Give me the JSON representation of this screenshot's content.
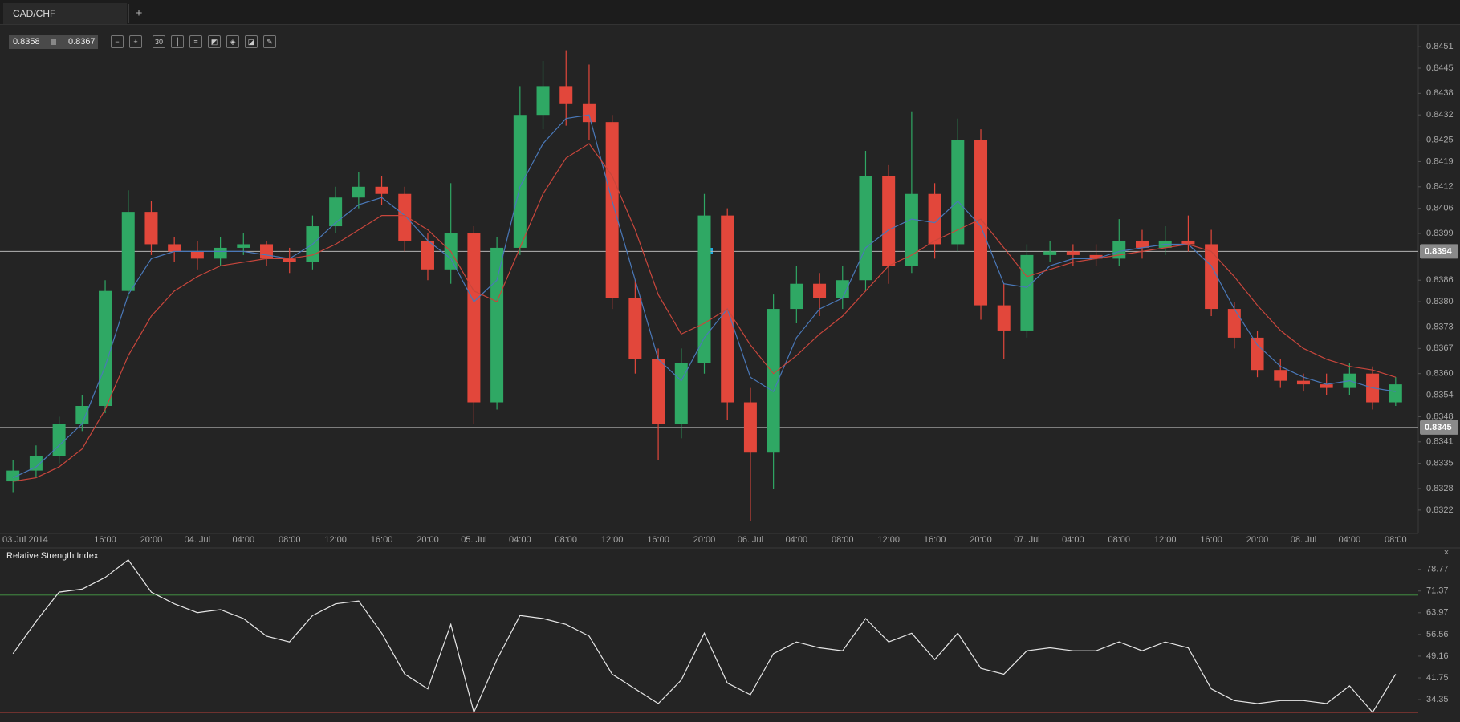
{
  "tab": {
    "title": "CAD/CHF",
    "add": "+"
  },
  "toolbar": {
    "bid": "0.8358",
    "ask": "0.8367",
    "timeframe": "30"
  },
  "chart_data": [
    {
      "type": "candlestick",
      "categories": [
        "03 Jul 2014",
        null,
        null,
        null,
        "16:00",
        null,
        "20:00",
        null,
        "04. Jul",
        null,
        "04:00",
        null,
        "08:00",
        null,
        "12:00",
        null,
        "16:00",
        null,
        "20:00",
        null,
        "05. Jul",
        null,
        "04:00",
        null,
        "08:00",
        null,
        "12:00",
        null,
        "16:00",
        null,
        "20:00",
        null,
        "06. Jul",
        null,
        "04:00",
        null,
        "08:00",
        null,
        "12:00",
        null,
        "16:00",
        null,
        "20:00",
        null,
        "07. Jul",
        null,
        "04:00",
        null,
        "08:00",
        null,
        "12:00",
        null,
        "16:00",
        null,
        "20:00",
        null,
        "08. Jul",
        null,
        "04:00",
        null,
        "08:00"
      ],
      "open": [
        0.833,
        0.8333,
        0.8337,
        0.8346,
        0.8351,
        0.8383,
        0.8405,
        0.8396,
        0.8394,
        0.8392,
        0.8395,
        0.8396,
        0.8392,
        0.8391,
        0.8401,
        0.8409,
        0.8412,
        0.841,
        0.8397,
        0.8389,
        0.8399,
        0.8352,
        0.8395,
        0.8432,
        0.844,
        0.8435,
        0.843,
        0.8381,
        0.8364,
        0.8346,
        0.8363,
        0.8404,
        0.8352,
        0.8338,
        0.8378,
        0.8385,
        0.8381,
        0.8386,
        0.8415,
        0.839,
        0.841,
        0.8396,
        0.8425,
        0.8379,
        0.8372,
        0.8393,
        0.8394,
        0.8393,
        0.8392,
        0.8397,
        0.8395,
        0.8397,
        0.8396,
        0.8378,
        0.837,
        0.8361,
        0.8358,
        0.8357,
        0.8356,
        0.836,
        0.8352
      ],
      "high": [
        0.8336,
        0.834,
        0.8348,
        0.8354,
        0.8386,
        0.8411,
        0.8408,
        0.8398,
        0.8397,
        0.8398,
        0.8399,
        0.8397,
        0.8395,
        0.8404,
        0.8412,
        0.8416,
        0.8415,
        0.8412,
        0.8399,
        0.8413,
        0.8401,
        0.8398,
        0.844,
        0.8447,
        0.845,
        0.8446,
        0.8432,
        0.8386,
        0.8367,
        0.8367,
        0.841,
        0.8406,
        0.8356,
        0.8382,
        0.839,
        0.8388,
        0.839,
        0.8422,
        0.8418,
        0.8433,
        0.8413,
        0.8431,
        0.8428,
        0.8385,
        0.8396,
        0.8397,
        0.8396,
        0.8396,
        0.8403,
        0.84,
        0.8401,
        0.8404,
        0.84,
        0.838,
        0.8372,
        0.8364,
        0.836,
        0.836,
        0.8363,
        0.8362,
        0.8359
      ],
      "low": [
        0.8327,
        0.8331,
        0.8335,
        0.8344,
        0.8349,
        0.8381,
        0.8393,
        0.8391,
        0.8389,
        0.839,
        0.8393,
        0.839,
        0.8388,
        0.8389,
        0.8399,
        0.8406,
        0.8407,
        0.8394,
        0.8386,
        0.8385,
        0.8346,
        0.835,
        0.8393,
        0.8428,
        0.8429,
        0.8425,
        0.8378,
        0.836,
        0.8336,
        0.8342,
        0.836,
        0.8347,
        0.8319,
        0.8328,
        0.8374,
        0.8376,
        0.8378,
        0.8383,
        0.8385,
        0.8388,
        0.8392,
        0.8394,
        0.8375,
        0.8364,
        0.837,
        0.8391,
        0.839,
        0.839,
        0.839,
        0.8392,
        0.8393,
        0.8394,
        0.8376,
        0.8367,
        0.8359,
        0.8356,
        0.8355,
        0.8354,
        0.8354,
        0.835,
        0.8351
      ],
      "close": [
        0.8333,
        0.8337,
        0.8346,
        0.8351,
        0.8383,
        0.8405,
        0.8396,
        0.8394,
        0.8392,
        0.8395,
        0.8396,
        0.8392,
        0.8391,
        0.8401,
        0.8409,
        0.8412,
        0.841,
        0.8397,
        0.8389,
        0.8399,
        0.8352,
        0.8395,
        0.8432,
        0.844,
        0.8435,
        0.843,
        0.8381,
        0.8364,
        0.8346,
        0.8363,
        0.8404,
        0.8352,
        0.8338,
        0.8378,
        0.8385,
        0.8381,
        0.8386,
        0.8415,
        0.839,
        0.841,
        0.8396,
        0.8425,
        0.8379,
        0.8372,
        0.8393,
        0.8394,
        0.8393,
        0.8392,
        0.8397,
        0.8395,
        0.8397,
        0.8396,
        0.8378,
        0.837,
        0.8361,
        0.8358,
        0.8357,
        0.8356,
        0.836,
        0.8352,
        0.8357
      ],
      "up_color": "#2fa864",
      "down_color": "#e2473b",
      "series": [
        {
          "color": "#4a78b8",
          "values": [
            0.8331,
            0.8334,
            0.834,
            0.8346,
            0.8362,
            0.8382,
            0.8392,
            0.8394,
            0.8394,
            0.8394,
            0.8394,
            0.8393,
            0.8392,
            0.8396,
            0.8402,
            0.8407,
            0.8409,
            0.8404,
            0.8397,
            0.8392,
            0.838,
            0.8386,
            0.8412,
            0.8424,
            0.8431,
            0.8432,
            0.8408,
            0.8386,
            0.8364,
            0.8358,
            0.837,
            0.8378,
            0.8359,
            0.8355,
            0.837,
            0.8378,
            0.8381,
            0.8395,
            0.84,
            0.8403,
            0.8402,
            0.8408,
            0.8401,
            0.8385,
            0.8384,
            0.839,
            0.8392,
            0.8392,
            0.8394,
            0.8395,
            0.8396,
            0.8396,
            0.839,
            0.8378,
            0.8368,
            0.8362,
            0.8359,
            0.8357,
            0.8358,
            0.8356,
            0.8355
          ]
        },
        {
          "color": "#c8463c",
          "values": [
            0.833,
            0.8331,
            0.8334,
            0.8339,
            0.835,
            0.8365,
            0.8376,
            0.8383,
            0.8387,
            0.839,
            0.8391,
            0.8392,
            0.8392,
            0.8393,
            0.8396,
            0.84,
            0.8404,
            0.8404,
            0.84,
            0.8394,
            0.8383,
            0.838,
            0.8395,
            0.841,
            0.842,
            0.8424,
            0.8415,
            0.84,
            0.8382,
            0.8371,
            0.8374,
            0.8378,
            0.8368,
            0.836,
            0.8365,
            0.8371,
            0.8376,
            0.8383,
            0.839,
            0.8393,
            0.8397,
            0.84,
            0.8403,
            0.8395,
            0.8387,
            0.8389,
            0.8391,
            0.8392,
            0.8393,
            0.8394,
            0.8395,
            0.8396,
            0.8394,
            0.8387,
            0.8379,
            0.8372,
            0.8367,
            0.8364,
            0.8362,
            0.8361,
            0.8359
          ]
        }
      ],
      "price_lines": [
        0.8394,
        0.8345
      ],
      "ylim": [
        0.83155,
        0.84575
      ],
      "yticks": [
        0.8451,
        0.8445,
        0.8438,
        0.8432,
        0.8425,
        0.8419,
        0.8412,
        0.8406,
        0.8399,
        0.8386,
        {
          "value": 0.838,
          "label": "0.8380"
        },
        0.8373,
        0.8367,
        {
          "value": 0.836,
          "label": "0.8360"
        },
        0.8354,
        0.8348,
        0.8341,
        0.8335,
        0.8328,
        0.8322
      ]
    },
    {
      "type": "line",
      "title": "Relative Strength Index",
      "close": "×",
      "color": "#e6e6e6",
      "values": [
        50,
        61,
        71,
        72,
        76,
        82,
        71,
        67,
        64,
        65,
        62,
        56,
        54,
        63,
        67,
        68,
        57,
        43,
        38,
        60,
        30,
        48,
        63,
        62,
        60,
        56,
        43,
        38,
        33,
        41,
        57,
        40,
        36,
        50,
        54,
        52,
        51,
        62,
        54,
        57,
        48,
        57,
        45,
        43,
        51,
        52,
        51,
        51,
        54,
        51,
        54,
        52,
        38,
        34,
        33,
        34,
        34,
        33,
        39,
        30,
        43
      ],
      "levels": [
        {
          "value": 70,
          "color": "#3c7a3c"
        },
        {
          "value": 30,
          "color": "#b8403a"
        }
      ],
      "ylim": [
        26.7,
        85.8
      ],
      "yticks": [
        78.77,
        71.37,
        63.97,
        56.56,
        49.16,
        41.75,
        34.35
      ]
    }
  ]
}
